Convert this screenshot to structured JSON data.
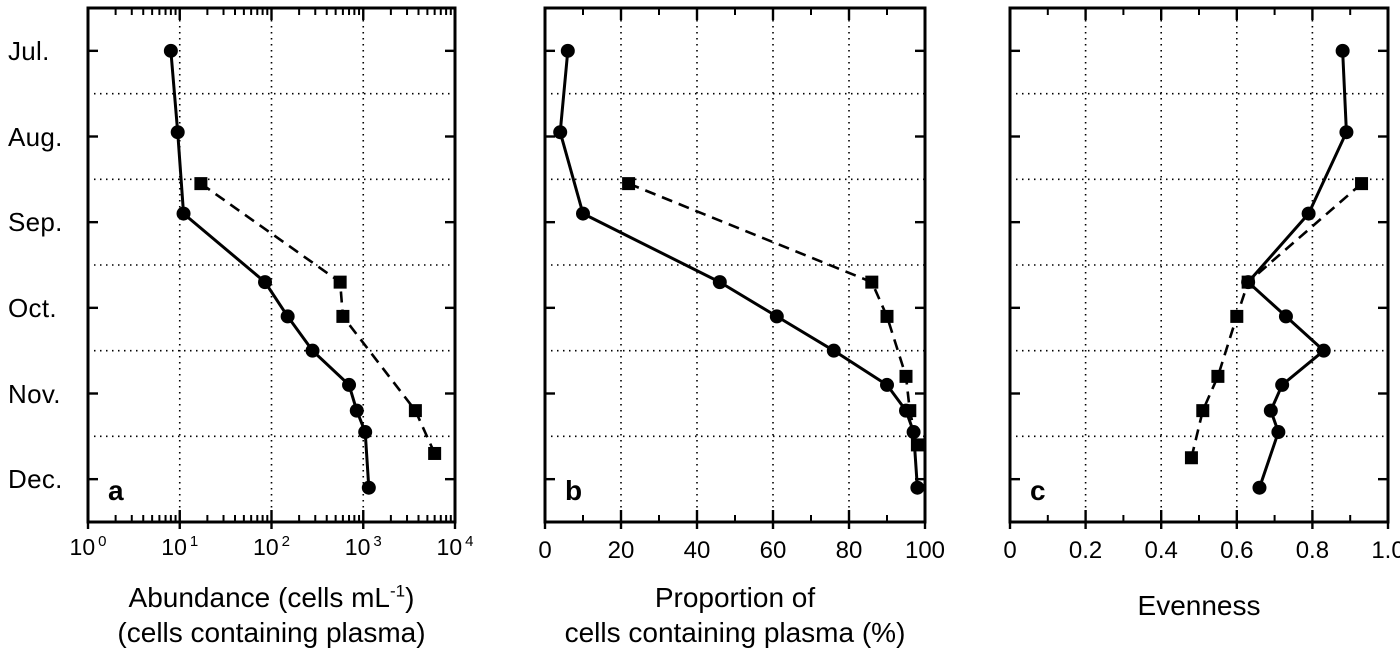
{
  "figure": {
    "background": "#ffffff",
    "ink": "#000000",
    "months": [
      "Jul.",
      "Aug.",
      "Sep.",
      "Oct.",
      "Nov.",
      "Dec."
    ]
  },
  "time_axis": {
    "t_definition": "months since 1 July (0 = 1 Jul, 6 = 31 Dec), plotted top-to-bottom",
    "t_min": 0,
    "t_max": 6,
    "gridline_ts": [
      1,
      2,
      3,
      4,
      5
    ],
    "label_ts": [
      0.5,
      1.5,
      2.5,
      3.5,
      4.5,
      5.5
    ]
  },
  "chart_data": [
    {
      "id": "a",
      "panel_label": "a",
      "type": "line",
      "orientation": "vertical-time-axis",
      "x_axis": {
        "scale": "log",
        "base": "10",
        "min_exp": 0,
        "max_exp": 4,
        "tick_exponents": [
          0,
          1,
          2,
          3,
          4
        ],
        "grid_values": [
          10,
          100,
          1000
        ]
      },
      "xlabel": {
        "main": "Abundance (cells mL",
        "sup": "-1",
        "close": ")",
        "line2": "(cells containing plasma)"
      },
      "series": [
        {
          "name": "abundance, solid line with filled circles",
          "marker": "circle",
          "line": "solid",
          "points": [
            {
              "t": 0.5,
              "v": 8
            },
            {
              "t": 1.45,
              "v": 9.5
            },
            {
              "t": 2.4,
              "v": 11
            },
            {
              "t": 3.2,
              "v": 85
            },
            {
              "t": 3.6,
              "v": 150
            },
            {
              "t": 4.0,
              "v": 280
            },
            {
              "t": 4.4,
              "v": 700
            },
            {
              "t": 4.7,
              "v": 850
            },
            {
              "t": 4.95,
              "v": 1050
            },
            {
              "t": 5.6,
              "v": 1150
            }
          ]
        },
        {
          "name": "abundance, dashed line with filled squares",
          "marker": "square",
          "line": "dashed",
          "points": [
            {
              "t": 2.05,
              "v": 17
            },
            {
              "t": 3.2,
              "v": 560
            },
            {
              "t": 3.6,
              "v": 600
            },
            {
              "t": 4.7,
              "v": 3700
            },
            {
              "t": 5.2,
              "v": 6000
            }
          ]
        }
      ]
    },
    {
      "id": "b",
      "panel_label": "b",
      "type": "line",
      "orientation": "vertical-time-axis",
      "x_axis": {
        "scale": "linear",
        "min": 0,
        "max": 100,
        "tick_values": [
          0,
          20,
          40,
          60,
          80,
          100
        ],
        "tick_labels": [
          "0",
          "20",
          "40",
          "60",
          "80",
          "100"
        ],
        "grid_values": [
          20,
          40,
          60,
          80
        ]
      },
      "xlabel": {
        "line1": "Proportion of",
        "line2": "cells containing plasma (%)"
      },
      "series": [
        {
          "name": "proportion, solid line with filled circles",
          "marker": "circle",
          "line": "solid",
          "points": [
            {
              "t": 0.5,
              "v": 6
            },
            {
              "t": 1.45,
              "v": 4
            },
            {
              "t": 2.4,
              "v": 10
            },
            {
              "t": 3.2,
              "v": 46
            },
            {
              "t": 3.6,
              "v": 61
            },
            {
              "t": 4.0,
              "v": 76
            },
            {
              "t": 4.4,
              "v": 90
            },
            {
              "t": 4.7,
              "v": 95
            },
            {
              "t": 4.95,
              "v": 97
            },
            {
              "t": 5.6,
              "v": 98
            }
          ]
        },
        {
          "name": "proportion, dashed line with filled squares",
          "marker": "square",
          "line": "dashed",
          "points": [
            {
              "t": 2.05,
              "v": 22
            },
            {
              "t": 3.2,
              "v": 86
            },
            {
              "t": 3.6,
              "v": 90
            },
            {
              "t": 4.3,
              "v": 95
            },
            {
              "t": 4.7,
              "v": 96
            },
            {
              "t": 5.1,
              "v": 98
            }
          ]
        }
      ]
    },
    {
      "id": "c",
      "panel_label": "c",
      "type": "line",
      "orientation": "vertical-time-axis",
      "x_axis": {
        "scale": "linear",
        "min": 0,
        "max": 1.0,
        "tick_values": [
          0,
          0.2,
          0.4,
          0.6,
          0.8,
          1.0
        ],
        "tick_labels": [
          "0",
          "0.2",
          "0.4",
          "0.6",
          "0.8",
          "1.0"
        ],
        "grid_values": [
          0.2,
          0.4,
          0.6,
          0.8
        ]
      },
      "xlabel": {
        "line1": "Evenness"
      },
      "series": [
        {
          "name": "evenness, solid line with filled circles",
          "marker": "circle",
          "line": "solid",
          "points": [
            {
              "t": 0.5,
              "v": 0.88
            },
            {
              "t": 1.45,
              "v": 0.89
            },
            {
              "t": 2.4,
              "v": 0.79
            },
            {
              "t": 3.2,
              "v": 0.63
            },
            {
              "t": 3.6,
              "v": 0.73
            },
            {
              "t": 4.0,
              "v": 0.83
            },
            {
              "t": 4.4,
              "v": 0.72
            },
            {
              "t": 4.7,
              "v": 0.69
            },
            {
              "t": 4.95,
              "v": 0.71
            },
            {
              "t": 5.6,
              "v": 0.66
            }
          ]
        },
        {
          "name": "evenness, dashed line with filled squares",
          "marker": "square",
          "line": "dashed",
          "points": [
            {
              "t": 2.05,
              "v": 0.93
            },
            {
              "t": 3.2,
              "v": 0.63
            },
            {
              "t": 3.6,
              "v": 0.6
            },
            {
              "t": 4.3,
              "v": 0.55
            },
            {
              "t": 4.7,
              "v": 0.51
            },
            {
              "t": 5.25,
              "v": 0.48
            }
          ]
        }
      ]
    }
  ]
}
